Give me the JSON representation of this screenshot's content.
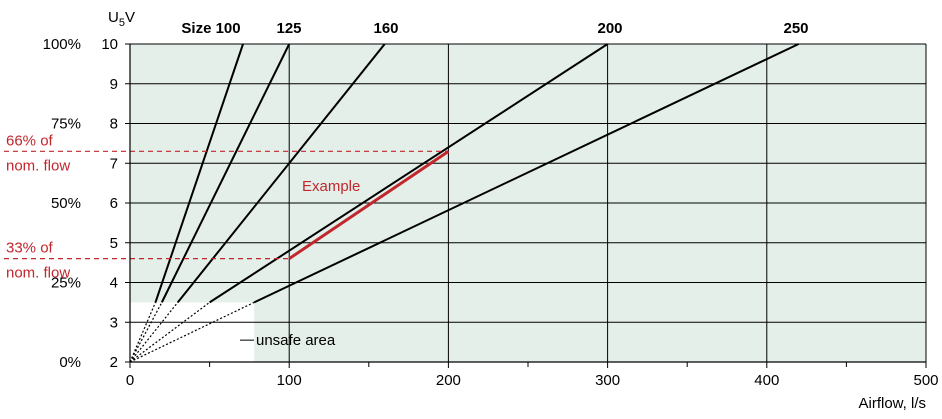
{
  "chart_data": {
    "type": "line",
    "xlabel": "Airflow, l/s",
    "ylabel_main": "U",
    "ylabel_sub": "5",
    "ylabel_unit": "V",
    "xlim": [
      0,
      500
    ],
    "ylim": [
      2,
      10
    ],
    "x_ticks": [
      0,
      100,
      200,
      300,
      400,
      500
    ],
    "y_ticks": [
      2,
      3,
      4,
      5,
      6,
      7,
      8,
      9,
      10
    ],
    "percent_ticks": [
      {
        "label": "0%",
        "y": 2
      },
      {
        "label": "25%",
        "y": 4
      },
      {
        "label": "50%",
        "y": 6
      },
      {
        "label": "75%",
        "y": 8
      },
      {
        "label": "100%",
        "y": 10
      }
    ],
    "grid": true,
    "colors": {
      "safe_area": "#e5efe9",
      "unsafe_area": "#ffffff",
      "lines": "#000000",
      "example": "#c1272d",
      "grid": "#000000"
    },
    "series": [
      {
        "name": "Size 100",
        "x": [
          0,
          16,
          71
        ],
        "y": [
          2,
          3.5,
          10
        ]
      },
      {
        "name": "125",
        "x": [
          0,
          20,
          100
        ],
        "y": [
          2,
          3.5,
          10
        ]
      },
      {
        "name": "160",
        "x": [
          0,
          30,
          160
        ],
        "y": [
          2,
          3.5,
          10
        ]
      },
      {
        "name": "200",
        "x": [
          0,
          50,
          300
        ],
        "y": [
          2,
          3.5,
          10
        ]
      },
      {
        "name": "250",
        "x": [
          0,
          78,
          420
        ],
        "y": [
          2,
          3.5,
          10
        ]
      }
    ],
    "unsafe_area": {
      "label": "unsafe area",
      "x": [
        0,
        78
      ],
      "y": [
        2,
        3.5
      ]
    },
    "example": {
      "label": "Example",
      "x": [
        100,
        200
      ],
      "y": [
        4.6,
        7.3
      ],
      "annotations": [
        {
          "line1": "66% of",
          "line2": "nom. flow",
          "y": 7.3
        },
        {
          "line1": "33% of",
          "line2": "nom. flow",
          "y": 4.6
        }
      ]
    }
  }
}
